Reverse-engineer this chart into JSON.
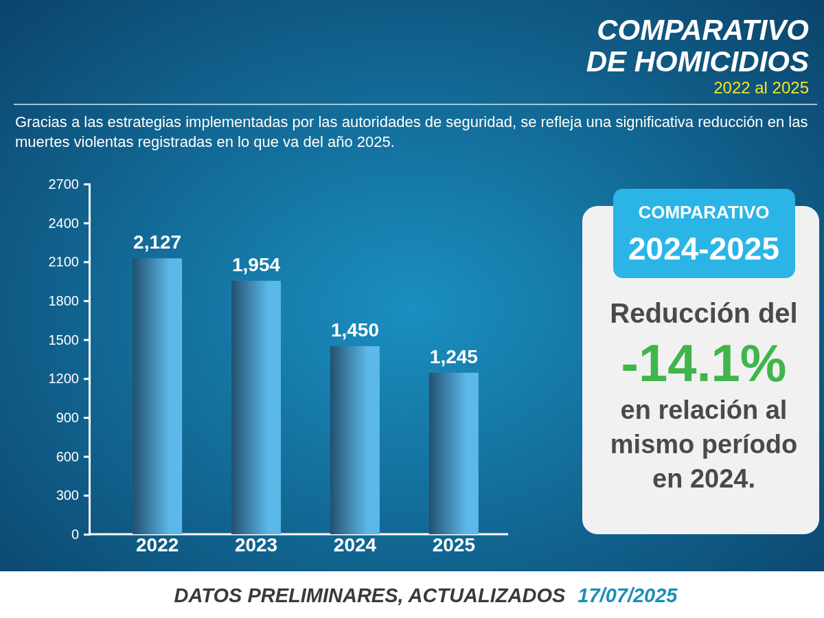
{
  "chart_data": {
    "type": "bar",
    "title": "COMPARATIVO DE HOMICIDIOS",
    "subtitle": "2022 al 2025",
    "categories": [
      "2022",
      "2023",
      "2024",
      "2025"
    ],
    "values": [
      2127,
      1954,
      1450,
      1245
    ],
    "color": "#5bb8e8",
    "ylim": [
      0,
      2700
    ],
    "yticks": [
      0,
      300,
      600,
      900,
      1200,
      1500,
      1800,
      2100,
      2400,
      2700
    ],
    "value_labels": [
      "2,127",
      "1,954",
      "1,450",
      "1,245"
    ],
    "annotations": [
      "Gracias a las estrategias implementadas por las autoridades de seguridad, se refleja una significativa reducción en las muertes violentas registradas en lo que va del año 2025.",
      "COMPARATIVO",
      "2024-2025",
      "Reducción del",
      "-14.1%",
      "en relación al mismo período en 2024.",
      "DATOS PRELIMINARES, ACTUALIZADOS",
      "17/07/2025"
    ]
  }
}
